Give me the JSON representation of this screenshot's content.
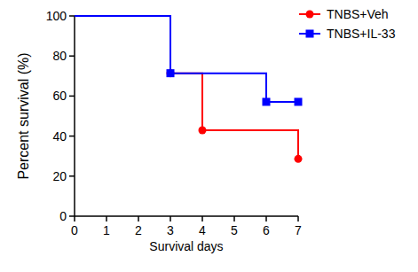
{
  "chart_data": {
    "type": "line",
    "line_style": "step",
    "x_label": "Survival days",
    "y_label": "Percent survival (%)",
    "xlim": [
      0,
      7
    ],
    "xticks": [
      0,
      1,
      2,
      3,
      4,
      5,
      6,
      7
    ],
    "ylim": [
      0,
      100
    ],
    "yticks": [
      0,
      20,
      40,
      60,
      80,
      100
    ],
    "grid": false,
    "legend": "upper right",
    "series": [
      {
        "name": "TNBS+Veh",
        "color": "#ff0000",
        "marker": "circle",
        "x": [
          0,
          3,
          4,
          7
        ],
        "values": [
          100,
          71.4,
          42.9,
          28.6
        ]
      },
      {
        "name": "TNBS+IL-33",
        "color": "#0000ff",
        "marker": "square",
        "x": [
          0,
          3,
          6,
          7
        ],
        "values": [
          100,
          71.4,
          57.1,
          57.1
        ]
      }
    ]
  }
}
